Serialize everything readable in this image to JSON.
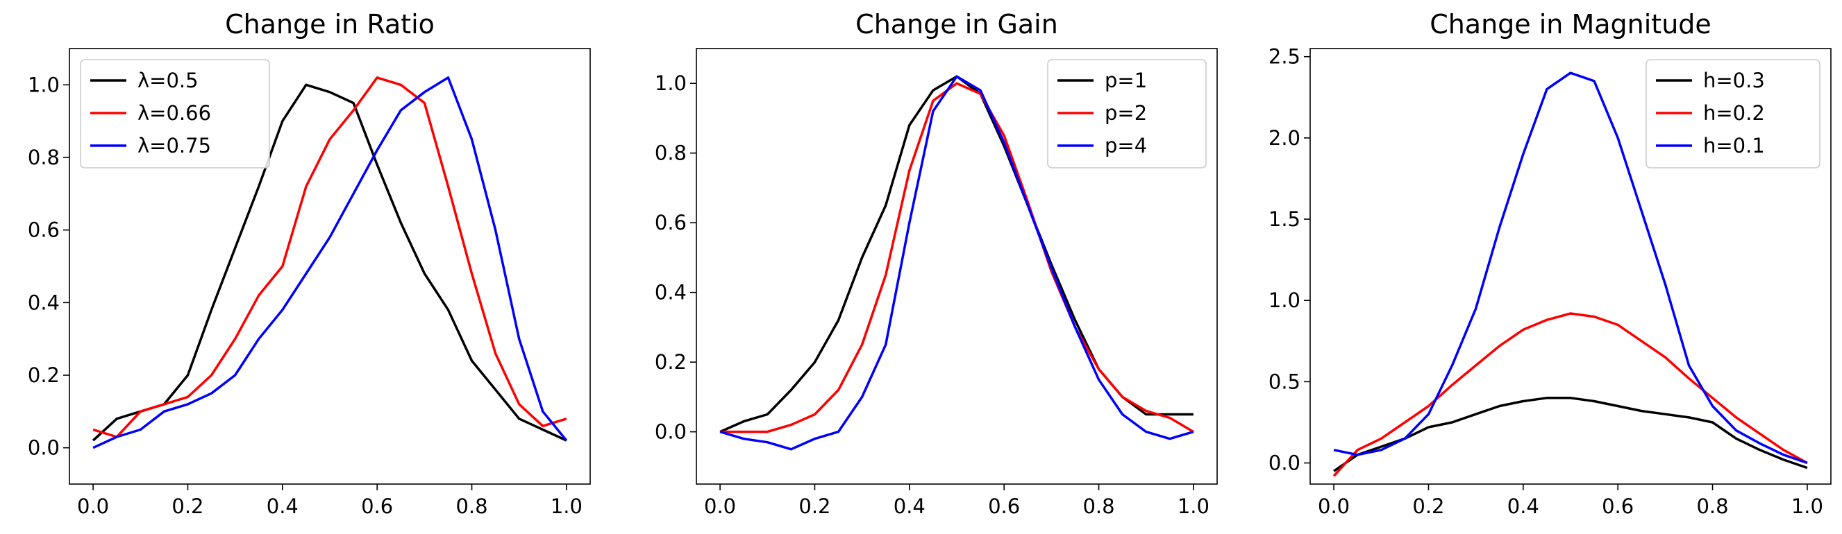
{
  "chart_data": [
    {
      "type": "line",
      "title": "Change in Ratio",
      "xlabel": "",
      "ylabel": "",
      "xlim": [
        -0.05,
        1.05
      ],
      "ylim": [
        -0.1,
        1.1
      ],
      "xticks": [
        0.0,
        0.2,
        0.4,
        0.6,
        0.8,
        1.0
      ],
      "xtick_labels": [
        "0.0",
        "0.2",
        "0.4",
        "0.6",
        "0.8",
        "1.0"
      ],
      "yticks": [
        0.0,
        0.2,
        0.4,
        0.6,
        0.8,
        1.0
      ],
      "ytick_labels": [
        "0.0",
        "0.2",
        "0.4",
        "0.6",
        "0.8",
        "1.0"
      ],
      "grid": false,
      "legend_position": "top-left",
      "series": [
        {
          "name": "λ=0.5",
          "color": "#000000",
          "x": [
            0.0,
            0.05,
            0.1,
            0.15,
            0.2,
            0.25,
            0.3,
            0.35,
            0.4,
            0.45,
            0.5,
            0.55,
            0.6,
            0.65,
            0.7,
            0.75,
            0.8,
            0.85,
            0.9,
            0.95,
            1.0
          ],
          "y": [
            0.02,
            0.08,
            0.1,
            0.12,
            0.2,
            0.38,
            0.55,
            0.72,
            0.9,
            1.0,
            0.98,
            0.95,
            0.78,
            0.62,
            0.48,
            0.38,
            0.24,
            0.16,
            0.08,
            0.05,
            0.02
          ]
        },
        {
          "name": "λ=0.66",
          "color": "#ff0000",
          "x": [
            0.0,
            0.05,
            0.1,
            0.15,
            0.2,
            0.25,
            0.3,
            0.35,
            0.4,
            0.45,
            0.5,
            0.55,
            0.6,
            0.65,
            0.7,
            0.75,
            0.8,
            0.85,
            0.9,
            0.95,
            1.0
          ],
          "y": [
            0.05,
            0.03,
            0.1,
            0.12,
            0.14,
            0.2,
            0.3,
            0.42,
            0.5,
            0.72,
            0.85,
            0.93,
            1.02,
            1.0,
            0.95,
            0.72,
            0.48,
            0.26,
            0.12,
            0.06,
            0.08
          ]
        },
        {
          "name": "λ=0.75",
          "color": "#0000ff",
          "x": [
            0.0,
            0.05,
            0.1,
            0.15,
            0.2,
            0.25,
            0.3,
            0.35,
            0.4,
            0.45,
            0.5,
            0.55,
            0.6,
            0.65,
            0.7,
            0.75,
            0.8,
            0.85,
            0.9,
            0.95,
            1.0
          ],
          "y": [
            0.0,
            0.03,
            0.05,
            0.1,
            0.12,
            0.15,
            0.2,
            0.3,
            0.38,
            0.48,
            0.58,
            0.7,
            0.82,
            0.93,
            0.98,
            1.02,
            0.85,
            0.6,
            0.3,
            0.1,
            0.02
          ]
        }
      ]
    },
    {
      "type": "line",
      "title": "Change in Gain",
      "xlabel": "",
      "ylabel": "",
      "xlim": [
        -0.05,
        1.05
      ],
      "ylim": [
        -0.15,
        1.1
      ],
      "xticks": [
        0.0,
        0.2,
        0.4,
        0.6,
        0.8,
        1.0
      ],
      "xtick_labels": [
        "0.0",
        "0.2",
        "0.4",
        "0.6",
        "0.8",
        "1.0"
      ],
      "yticks": [
        0.0,
        0.2,
        0.4,
        0.6,
        0.8,
        1.0
      ],
      "ytick_labels": [
        "0.0",
        "0.2",
        "0.4",
        "0.6",
        "0.8",
        "1.0"
      ],
      "grid": false,
      "legend_position": "top-right",
      "series": [
        {
          "name": "p=1",
          "color": "#000000",
          "x": [
            0.0,
            0.05,
            0.1,
            0.15,
            0.2,
            0.25,
            0.3,
            0.35,
            0.4,
            0.45,
            0.5,
            0.55,
            0.6,
            0.65,
            0.7,
            0.75,
            0.8,
            0.85,
            0.9,
            0.95,
            1.0
          ],
          "y": [
            0.0,
            0.03,
            0.05,
            0.12,
            0.2,
            0.32,
            0.5,
            0.65,
            0.88,
            0.98,
            1.02,
            0.97,
            0.82,
            0.65,
            0.48,
            0.32,
            0.18,
            0.1,
            0.05,
            0.05,
            0.05
          ]
        },
        {
          "name": "p=2",
          "color": "#ff0000",
          "x": [
            0.0,
            0.05,
            0.1,
            0.15,
            0.2,
            0.25,
            0.3,
            0.35,
            0.4,
            0.45,
            0.5,
            0.55,
            0.6,
            0.65,
            0.7,
            0.75,
            0.8,
            0.85,
            0.9,
            0.95,
            1.0
          ],
          "y": [
            0.0,
            0.0,
            0.0,
            0.02,
            0.05,
            0.12,
            0.25,
            0.45,
            0.75,
            0.95,
            1.0,
            0.97,
            0.85,
            0.66,
            0.46,
            0.3,
            0.18,
            0.1,
            0.06,
            0.04,
            0.0
          ]
        },
        {
          "name": "p=4",
          "color": "#0000ff",
          "x": [
            0.0,
            0.05,
            0.1,
            0.15,
            0.2,
            0.25,
            0.3,
            0.35,
            0.4,
            0.45,
            0.5,
            0.55,
            0.6,
            0.65,
            0.7,
            0.75,
            0.8,
            0.85,
            0.9,
            0.95,
            1.0
          ],
          "y": [
            0.0,
            -0.02,
            -0.03,
            -0.05,
            -0.02,
            0.0,
            0.1,
            0.25,
            0.6,
            0.92,
            1.02,
            0.98,
            0.83,
            0.65,
            0.47,
            0.3,
            0.15,
            0.05,
            0.0,
            -0.02,
            0.0
          ]
        }
      ]
    },
    {
      "type": "line",
      "title": "Change in Magnitude",
      "xlabel": "",
      "ylabel": "",
      "xlim": [
        -0.05,
        1.05
      ],
      "ylim": [
        -0.13,
        2.55
      ],
      "xticks": [
        0.0,
        0.2,
        0.4,
        0.6,
        0.8,
        1.0
      ],
      "xtick_labels": [
        "0.0",
        "0.2",
        "0.4",
        "0.6",
        "0.8",
        "1.0"
      ],
      "yticks": [
        0.0,
        0.5,
        1.0,
        1.5,
        2.0,
        2.5
      ],
      "ytick_labels": [
        "0.0",
        "0.5",
        "1.0",
        "1.5",
        "2.0",
        "2.5"
      ],
      "grid": false,
      "legend_position": "top-right",
      "series": [
        {
          "name": "h=0.3",
          "color": "#000000",
          "x": [
            0.0,
            0.05,
            0.1,
            0.15,
            0.2,
            0.25,
            0.3,
            0.35,
            0.4,
            0.45,
            0.5,
            0.55,
            0.6,
            0.65,
            0.7,
            0.75,
            0.8,
            0.85,
            0.9,
            0.95,
            1.0
          ],
          "y": [
            -0.05,
            0.05,
            0.1,
            0.15,
            0.22,
            0.25,
            0.3,
            0.35,
            0.38,
            0.4,
            0.4,
            0.38,
            0.35,
            0.32,
            0.3,
            0.28,
            0.25,
            0.15,
            0.08,
            0.02,
            -0.03
          ]
        },
        {
          "name": "h=0.2",
          "color": "#ff0000",
          "x": [
            0.0,
            0.05,
            0.1,
            0.15,
            0.2,
            0.25,
            0.3,
            0.35,
            0.4,
            0.45,
            0.5,
            0.55,
            0.6,
            0.65,
            0.7,
            0.75,
            0.8,
            0.85,
            0.9,
            0.95,
            1.0
          ],
          "y": [
            -0.08,
            0.08,
            0.15,
            0.25,
            0.35,
            0.48,
            0.6,
            0.72,
            0.82,
            0.88,
            0.92,
            0.9,
            0.85,
            0.75,
            0.65,
            0.52,
            0.4,
            0.28,
            0.18,
            0.08,
            0.0
          ]
        },
        {
          "name": "h=0.1",
          "color": "#0000ff",
          "x": [
            0.0,
            0.05,
            0.1,
            0.15,
            0.2,
            0.25,
            0.3,
            0.35,
            0.4,
            0.45,
            0.5,
            0.55,
            0.6,
            0.65,
            0.7,
            0.75,
            0.8,
            0.85,
            0.9,
            0.95,
            1.0
          ],
          "y": [
            0.08,
            0.05,
            0.08,
            0.15,
            0.3,
            0.6,
            0.95,
            1.45,
            1.9,
            2.3,
            2.4,
            2.35,
            2.0,
            1.55,
            1.1,
            0.6,
            0.35,
            0.2,
            0.12,
            0.05,
            0.0
          ]
        }
      ]
    }
  ]
}
